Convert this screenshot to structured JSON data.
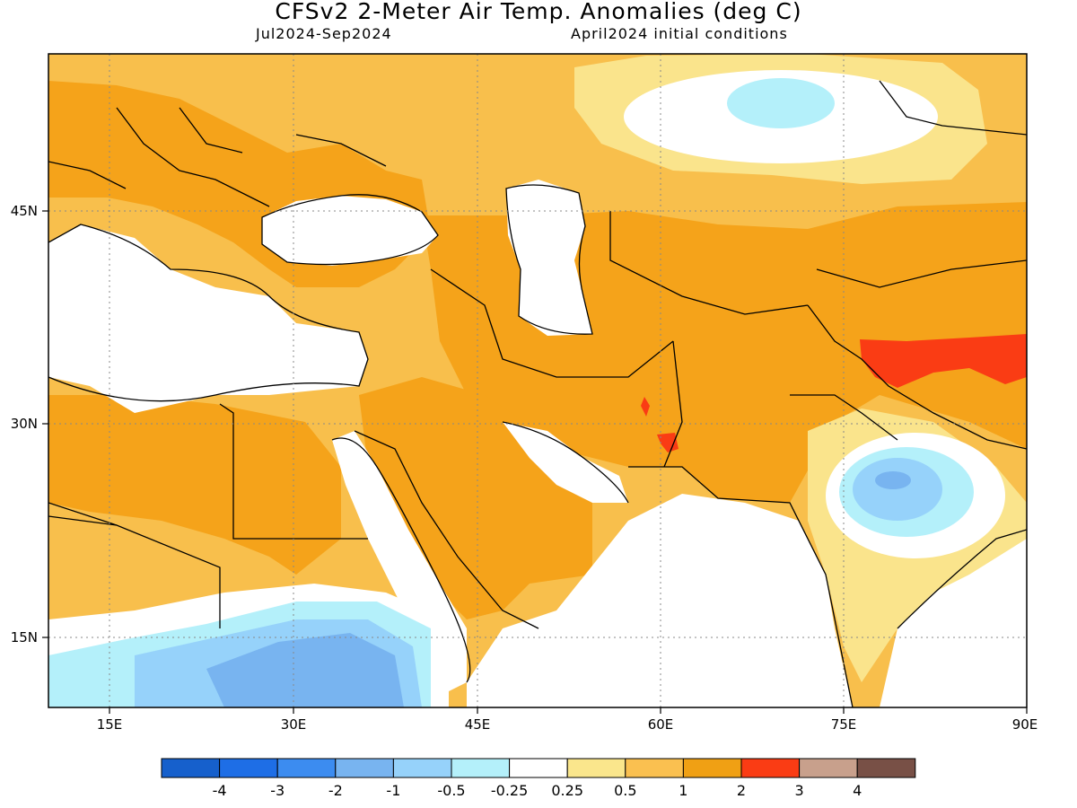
{
  "title": "CFSv2 2-Meter Air Temp. Anomalies (deg C)",
  "subtitle_left": "Jul2024-Sep2024",
  "subtitle_right": "April2024 initial conditions",
  "lon_ticks": [
    "15E",
    "30E",
    "45E",
    "60E",
    "75E",
    "90E"
  ],
  "lat_ticks": [
    "45N",
    "30N",
    "15N"
  ],
  "colorbar": {
    "colors": [
      "#1660cc",
      "#1e6ee6",
      "#3c8cf0",
      "#78b4f0",
      "#96d2fa",
      "#b4f0fa",
      "#ffffff",
      "#fae68c",
      "#fac050",
      "#f0a014",
      "#fa3c14",
      "#c8a08c",
      "#785046"
    ],
    "labels": [
      "-4",
      "-3",
      "-2",
      "-1",
      "-0.5",
      "-0.25",
      "0.25",
      "0.5",
      "1",
      "2",
      "3",
      "4"
    ]
  },
  "legend_colors": {
    "ocean_white": "#ffffff",
    "very_warm": "#fa3c14",
    "warm": "#f5a31a",
    "mild": "#f8bf4c",
    "slight": "#fae48c",
    "cool_light": "#b4f0fa",
    "cool": "#96d2fa",
    "cold": "#78b4f0"
  }
}
